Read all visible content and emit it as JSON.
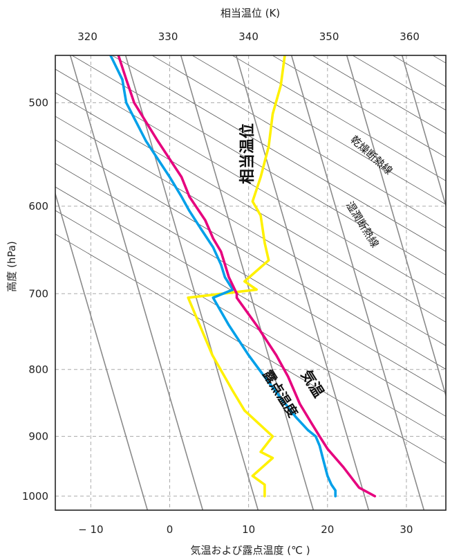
{
  "chart_data": {
    "type": "line",
    "title": "",
    "x_bottom": {
      "label": "気温および露点温度 (℃ )",
      "ticks": [
        -10,
        0,
        10,
        20,
        30
      ],
      "tick_labels": [
        "− 10",
        "0",
        "10",
        "20",
        "30"
      ],
      "range": [
        -14.5,
        35
      ]
    },
    "x_top": {
      "label": "相当温位 (K)",
      "ticks": [
        320,
        330,
        340,
        350,
        360
      ],
      "range": [
        316,
        364.5
      ]
    },
    "y": {
      "label": "高度 (hPa)",
      "ticks": [
        500,
        600,
        700,
        800,
        900,
        1000
      ],
      "scale": "log",
      "reversed": true,
      "range": [
        460,
        1025
      ]
    },
    "grid": true,
    "series": [
      {
        "name": "気温",
        "unit": "℃",
        "color": "#e6007e",
        "points": [
          [
            -6.5,
            460
          ],
          [
            -5.5,
            480
          ],
          [
            -4.5,
            500
          ],
          [
            -1.5,
            535
          ],
          [
            1.5,
            570
          ],
          [
            2.5,
            590
          ],
          [
            4.5,
            615
          ],
          [
            5.5,
            635
          ],
          [
            6.5,
            650
          ],
          [
            7.5,
            680
          ],
          [
            8.5,
            700
          ],
          [
            8.5,
            705
          ],
          [
            11,
            740
          ],
          [
            13.5,
            780
          ],
          [
            15,
            810
          ],
          [
            16.5,
            850
          ],
          [
            18,
            880
          ],
          [
            19,
            900
          ],
          [
            20,
            920
          ],
          [
            22,
            950
          ],
          [
            24,
            985
          ],
          [
            26,
            1000
          ]
        ]
      },
      {
        "name": "露点温度",
        "unit": "℃",
        "color": "#00a0e9",
        "points": [
          [
            -7.5,
            460
          ],
          [
            -6,
            480
          ],
          [
            -5.5,
            500
          ],
          [
            -3,
            535
          ],
          [
            0,
            570
          ],
          [
            1.5,
            590
          ],
          [
            2.5,
            605
          ],
          [
            4,
            625
          ],
          [
            5.5,
            645
          ],
          [
            6.5,
            665
          ],
          [
            7,
            680
          ],
          [
            8,
            695
          ],
          [
            5.5,
            705
          ],
          [
            7.5,
            740
          ],
          [
            10,
            780
          ],
          [
            12,
            810
          ],
          [
            14,
            840
          ],
          [
            16,
            870
          ],
          [
            17.5,
            890
          ],
          [
            18.5,
            900
          ],
          [
            19,
            915
          ],
          [
            19.5,
            940
          ],
          [
            20,
            965
          ],
          [
            20.5,
            980
          ],
          [
            21,
            990
          ],
          [
            21,
            1000
          ]
        ]
      },
      {
        "name": "相当温位",
        "unit": "K",
        "color": "#fff100",
        "points": [
          [
            344.5,
            460
          ],
          [
            344,
            485
          ],
          [
            343,
            510
          ],
          [
            342.5,
            540
          ],
          [
            341.5,
            570
          ],
          [
            340.5,
            595
          ],
          [
            341.5,
            610
          ],
          [
            342,
            640
          ],
          [
            342.5,
            660
          ],
          [
            339.5,
            685
          ],
          [
            341,
            695
          ],
          [
            332.5,
            705
          ],
          [
            335.5,
            780
          ],
          [
            338,
            830
          ],
          [
            339.5,
            860
          ],
          [
            343,
            900
          ],
          [
            341.5,
            925
          ],
          [
            343,
            935
          ],
          [
            340.5,
            965
          ],
          [
            342,
            980
          ],
          [
            342,
            1000
          ]
        ]
      }
    ],
    "reference_lines": [
      {
        "name": "乾燥断熱線",
        "color": "#555555"
      },
      {
        "name": "湿潤断熱線",
        "color": "#888888"
      }
    ],
    "annotations": [
      "相当温位",
      "乾燥断熱線",
      "湿潤断熱線",
      "気温",
      "露点温度"
    ]
  }
}
